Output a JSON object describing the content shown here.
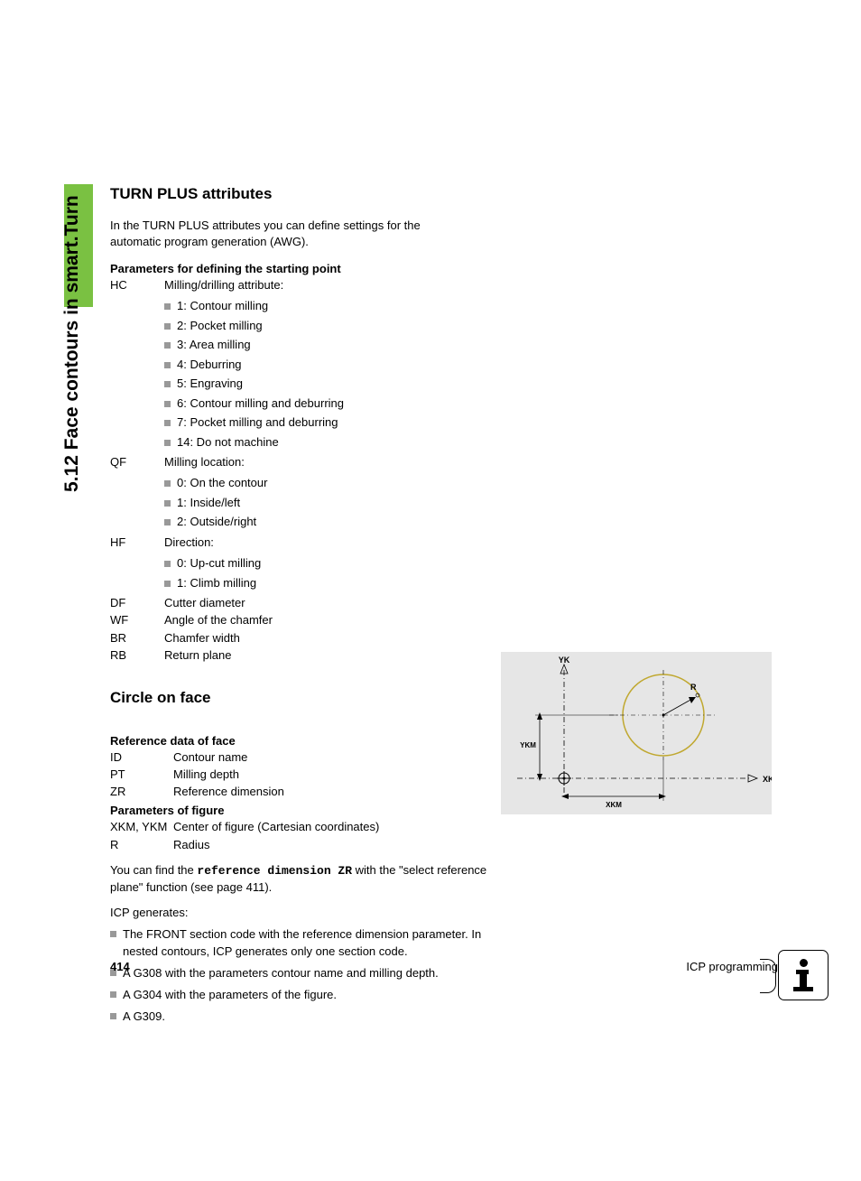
{
  "sideHeading": "5.12 Face contours in smart.Turn",
  "section1": {
    "title": "TURN PLUS attributes",
    "intro": "In the TURN PLUS attributes you can define settings for the automatic program generation (AWG).",
    "paramHead": "Parameters for defining the starting point",
    "params": [
      {
        "code": "HC",
        "desc": "Milling/drilling attribute:"
      }
    ],
    "hcList": [
      "1: Contour milling",
      "2: Pocket milling",
      "3: Area milling",
      "4: Deburring",
      "5: Engraving",
      "6: Contour milling and deburring",
      "7: Pocket milling and deburring",
      "14: Do not machine"
    ],
    "qf": {
      "code": "QF",
      "desc": "Milling location:"
    },
    "qfList": [
      "0: On the contour",
      "1: Inside/left",
      "2: Outside/right"
    ],
    "hf": {
      "code": "HF",
      "desc": "Direction:"
    },
    "hfList": [
      "0: Up-cut milling",
      "1: Climb milling"
    ],
    "simple": [
      {
        "code": "DF",
        "desc": "Cutter diameter"
      },
      {
        "code": "WF",
        "desc": "Angle of the chamfer"
      },
      {
        "code": "BR",
        "desc": "Chamfer width"
      },
      {
        "code": "RB",
        "desc": "Return plane"
      }
    ]
  },
  "section2": {
    "title": "Circle on face",
    "refHead": "Reference data of face",
    "refParams": [
      {
        "code": "ID",
        "desc": "Contour name"
      },
      {
        "code": "PT",
        "desc": "Milling depth"
      },
      {
        "code": "ZR",
        "desc": "Reference dimension"
      }
    ],
    "figHead": "Parameters of figure",
    "figParams": [
      {
        "code": "XKM, YKM",
        "desc": "Center of figure (Cartesian coordinates)"
      },
      {
        "code": "R",
        "desc": "Radius"
      }
    ],
    "bodyPrefix": "You can find the ",
    "bodyMono": "reference dimension ZR",
    "bodySuffix": " with the \"select reference plane\" function (see page 411).",
    "genIntro": "ICP generates:",
    "genList": [
      "The FRONT section code with the reference dimension parameter. In nested contours, ICP generates only one section code.",
      "A G308 with the parameters contour name and milling depth.",
      "A G304 with the parameters of the figure.",
      "A G309."
    ]
  },
  "diagram": {
    "bg": "#e6e6e6",
    "ykLabel": "YK",
    "xkLabel": "XK",
    "ykmLabel": "YKM",
    "xkmLabel": "XKM",
    "rLabel": "R",
    "circleColor": "#c0a830",
    "axisColor": "#000000"
  },
  "footer": {
    "pageNum": "414",
    "chapter": "ICP programming"
  }
}
